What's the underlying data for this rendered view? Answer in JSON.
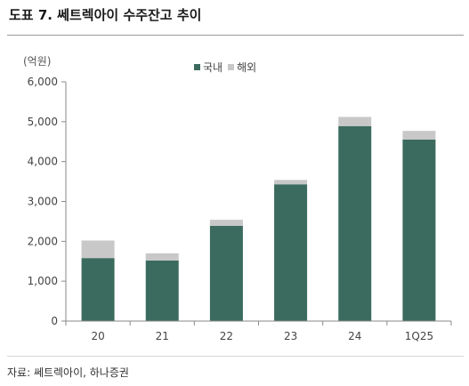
{
  "figure": {
    "title": "도표 7. 쎄트렉아이 수주잔고 추이",
    "unit": "(억원)",
    "source": "자료: 쎄트렉아이, 하나증권"
  },
  "colors": {
    "domestic": "#3b6b5e",
    "overseas": "#c8c8c8",
    "axis": "#8a8a8a"
  },
  "chart_data": {
    "type": "bar",
    "stacked": true,
    "categories": [
      "20",
      "21",
      "22",
      "23",
      "24",
      "1Q25"
    ],
    "series": [
      {
        "name": "국내",
        "values": [
          1580,
          1520,
          2390,
          3430,
          4890,
          4550
        ]
      },
      {
        "name": "해외",
        "values": [
          440,
          180,
          150,
          110,
          230,
          220
        ]
      }
    ],
    "ylabel": "(억원)",
    "ylim": [
      0,
      6000
    ],
    "yticks": [
      0,
      1000,
      2000,
      3000,
      4000,
      5000,
      6000
    ],
    "ytick_labels": [
      "0",
      "1,000",
      "2,000",
      "3,000",
      "4,000",
      "5,000",
      "6,000"
    ],
    "legend_position": "top-center",
    "grid": false
  }
}
